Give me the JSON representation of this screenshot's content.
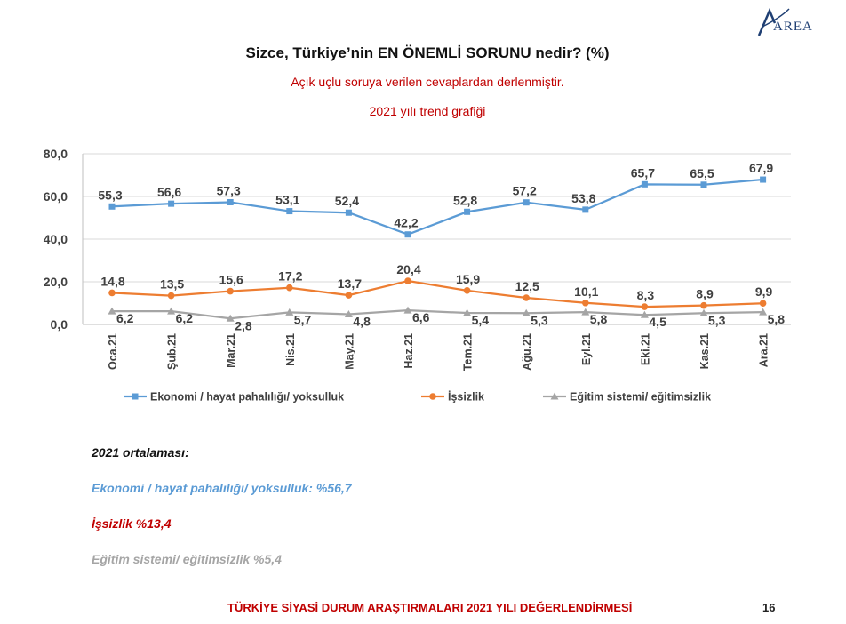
{
  "logo": {
    "text": "AREA"
  },
  "header": {
    "title": "Sizce, Türkiye’nin EN ÖNEMLİ SORUNU nedir? (%)",
    "subtitle": "Açık uçlu soruya verilen cevaplardan derlenmiştir.",
    "subtitle2": "2021 yılı trend grafiği"
  },
  "chart_data": {
    "type": "line",
    "title": "Sizce, Türkiye’nin EN ÖNEMLİ SORUNU nedir? (%)",
    "categories": [
      "Oca.21",
      "Şub.21",
      "Mar.21",
      "Nis.21",
      "May.21",
      "Haz.21",
      "Tem.21",
      "Ağu.21",
      "Eyl.21",
      "Eki.21",
      "Kas.21",
      "Ara.21"
    ],
    "ylim": [
      0,
      80
    ],
    "yticks": [
      0,
      20,
      40,
      60,
      80
    ],
    "ytick_labels": [
      "0,0",
      "20,0",
      "40,0",
      "60,0",
      "80,0"
    ],
    "grid": true,
    "legend_position": "bottom",
    "series": [
      {
        "name": "Ekonomi / hayat pahalılığı/ yoksulluk",
        "color": "#5b9bd5",
        "marker": "square",
        "values": [
          55.3,
          56.6,
          57.3,
          53.1,
          52.4,
          42.2,
          52.8,
          57.2,
          53.8,
          65.7,
          65.5,
          67.9
        ],
        "labels": [
          "55,3",
          "56,6",
          "57,3",
          "53,1",
          "52,4",
          "42,2",
          "52,8",
          "57,2",
          "53,8",
          "65,7",
          "65,5",
          "67,9"
        ]
      },
      {
        "name": "İşsizlik",
        "color": "#ed7d31",
        "marker": "circle",
        "values": [
          14.8,
          13.5,
          15.6,
          17.2,
          13.7,
          20.4,
          15.9,
          12.5,
          10.1,
          8.3,
          8.9,
          9.9
        ],
        "labels": [
          "14,8",
          "13,5",
          "15,6",
          "17,2",
          "13,7",
          "20,4",
          "15,9",
          "12,5",
          "10,1",
          "8,3",
          "8,9",
          "9,9"
        ]
      },
      {
        "name": "Eğitim sistemi/ eğitimsizlik",
        "color": "#a5a5a5",
        "marker": "triangle",
        "values": [
          6.2,
          6.2,
          2.8,
          5.7,
          4.8,
          6.6,
          5.4,
          5.3,
          5.8,
          4.5,
          5.3,
          5.8
        ],
        "labels": [
          "6,2",
          "6,2",
          "2,8",
          "5,7",
          "4,8",
          "6,6",
          "5,4",
          "5,3",
          "5,8",
          "4,5",
          "5,3",
          "5,8"
        ]
      }
    ]
  },
  "averages": {
    "heading": "2021 ortalaması:",
    "economy": "Ekonomi / hayat pahalılığı/ yoksulluk: %56,7",
    "unemployment": "İşsizlik %13,4",
    "education": "Eğitim sistemi/ eğitimsizlik %5,4"
  },
  "footer": {
    "text": "TÜRKİYE SİYASİ DURUM ARAŞTIRMALARI 2021 YILI DEĞERLENDİRMESİ",
    "page": "16"
  }
}
